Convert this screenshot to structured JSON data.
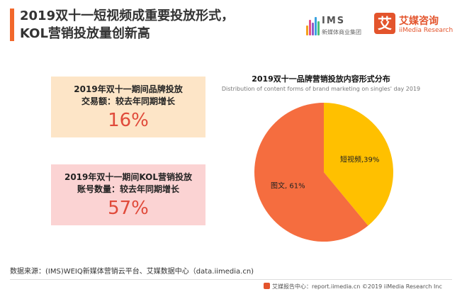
{
  "header": {
    "title_line1": "2019双十一短视频成重要投放形式，",
    "title_line2": "KOL营销投放量创新高",
    "accent_color": "#f2682b"
  },
  "logos": {
    "ims": {
      "name": "IMS",
      "subtitle": "新媒体商业集团"
    },
    "iimedia": {
      "badge": "艾",
      "name": "艾媒咨询",
      "subtitle": "iiMedia Research",
      "color": "#e3542c"
    }
  },
  "stats": [
    {
      "line1": "2019年双十一期间品牌投放",
      "line2": "交易额：较去年同期增长",
      "value": "16%",
      "bg": "#fde5c7"
    },
    {
      "line1": "2019年双十一期间KOL营销投放",
      "line2": "账号数量：较去年同期增长",
      "value": "57%",
      "bg": "#fbd3d3"
    }
  ],
  "chart_data": {
    "type": "pie",
    "title": "2019双十一品牌营销投放内容形式分布",
    "subtitle": "Distribution of content forms of brand marketing on singles' day 2019",
    "slices": [
      {
        "label": "短视频",
        "value": 39,
        "display": "短视频,39%",
        "color": "#ffc000"
      },
      {
        "label": "图文",
        "value": 61,
        "display": "图文, 61%",
        "color": "#f56d3f"
      }
    ]
  },
  "footer": {
    "source": "数据来源：(IMS)WEIQ新媒体营销云平台、艾媒数据中心（data.iimedia.cn)",
    "note": "艾媒报告中心：report.iimedia.cn ©2019 iiMedia Research Inc"
  }
}
